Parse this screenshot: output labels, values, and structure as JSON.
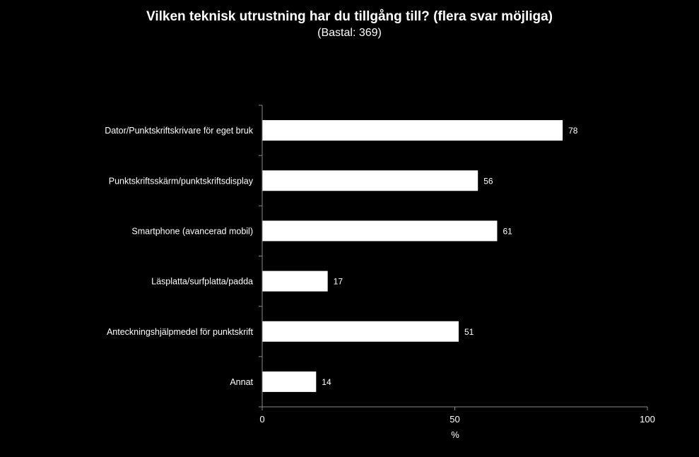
{
  "chart_data": {
    "type": "bar",
    "orientation": "horizontal",
    "title": "Vilken teknisk utrustning har du tillgång till?  (flera svar möjliga)",
    "subtitle": "(Bastal: 369)",
    "xlabel": "%",
    "ylabel": "",
    "xlim": [
      0,
      100
    ],
    "xticks": [
      0,
      50,
      100
    ],
    "grid": false,
    "categories": [
      "Dator/Punktskriftskrivare för eget bruk",
      "Punktskriftsskärm/punktskriftsdisplay",
      "Smartphone (avancerad mobil)",
      "Läsplatta/surfplatta/padda",
      "Anteckningshjälpmedel för punktskrift",
      "Annat"
    ],
    "values": [
      78,
      56,
      61,
      17,
      51,
      14
    ],
    "colors": {
      "background": "#000000",
      "bar": "#ffffff",
      "text": "#ffffff",
      "axis": "#888888"
    }
  }
}
